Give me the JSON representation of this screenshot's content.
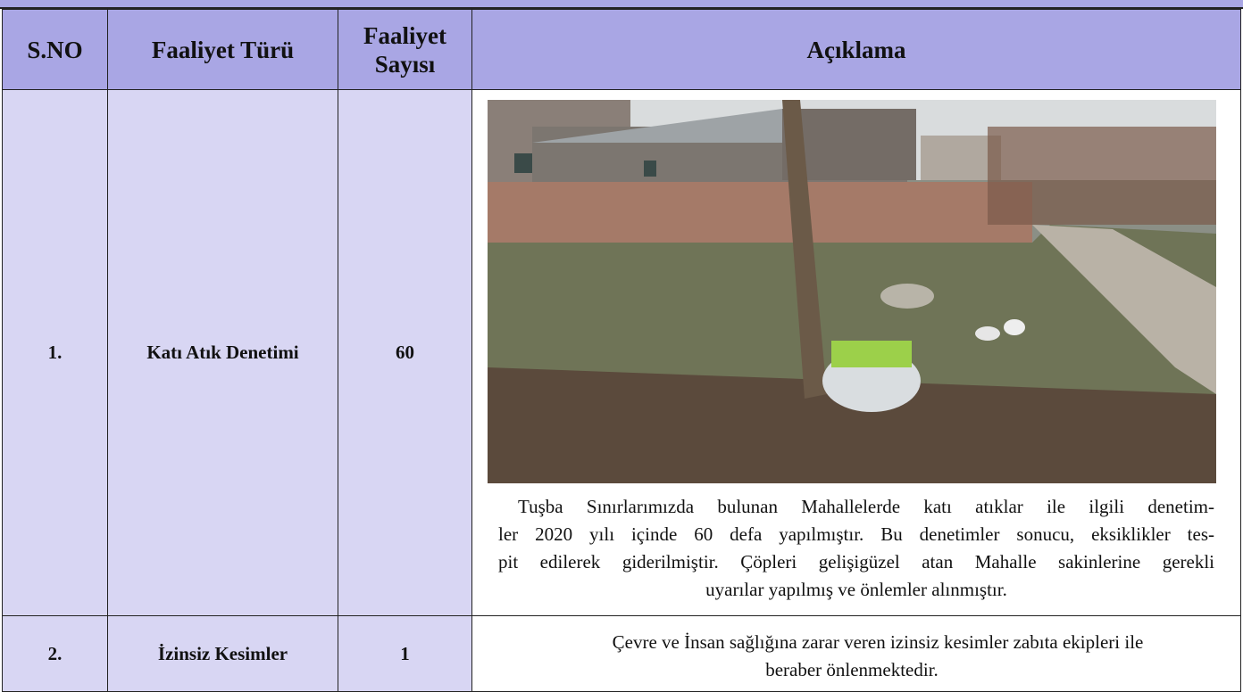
{
  "table": {
    "header": [
      "S.NO",
      "Faaliyet Türü",
      "Faaliyet Sayısı",
      "Açıklama"
    ],
    "rows": [
      {
        "no": "1.",
        "type": "Katı Atık Denetimi",
        "count": 60,
        "description": [
          "Tuşba Sınırlarımızda bulunan Mahallelerde  katı atıklar ile ilgili denetim-",
          "ler 2020 yılı içinde 60 defa yapılmıştır. Bu denetimler sonucu, eksiklikler tes-",
          "pit edilerek giderilmiştir. Çöpleri gelişigüzel atan Mahalle sakinlerine gerekli",
          "uyarılar yapılmış ve önlemler alınmıştır."
        ]
      },
      {
        "no": "2.",
        "type": "İzinsiz Kesimler",
        "count": 1,
        "description": [
          "Çevre ve İnsan sağlığına zarar veren izinsiz kesimler zabıta ekipleri ile",
          "beraber önlenmektedir."
        ]
      }
    ]
  }
}
